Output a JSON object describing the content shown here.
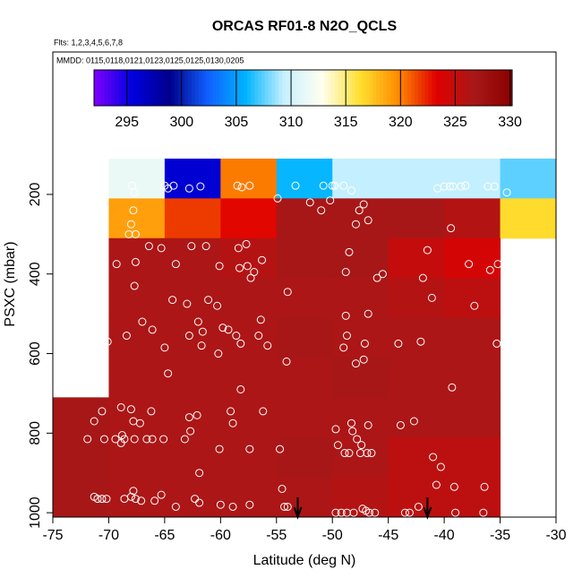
{
  "chart_data": {
    "type": "heatmap",
    "title": "ORCAS RF01-8 N2O_QCLS",
    "subtitle": "Flts: 1,2,3,4,5,6,7,8",
    "annotation": "MMDD: 0115,0118,0121,0123,0125,0125,0130,0205",
    "x_label": "Latitude (deg N)",
    "y_label": "PSXC (mbar)",
    "xlim": [
      -75,
      -30
    ],
    "xticks": [
      -75,
      -70,
      -65,
      -60,
      -55,
      -50,
      -45,
      -40,
      -35,
      -30
    ],
    "ylim": [
      -158,
      1011
    ],
    "yticks": [
      200,
      400,
      600,
      800,
      1000
    ],
    "x_edges": [
      -75,
      -70,
      -65,
      -60,
      -55,
      -50,
      -45,
      -40,
      -35,
      -30
    ],
    "y_edges": [
      110,
      210,
      310,
      410,
      510,
      610,
      710,
      810,
      910,
      1010
    ],
    "values": [
      [
        null,
        311.5,
        296,
        320.2,
        306,
        309.3,
        309.3,
        309.3,
        307.5
      ],
      [
        null,
        319,
        321.8,
        323.1,
        326.8,
        326.8,
        326.8,
        326,
        316.5
      ],
      [
        null,
        326.5,
        326.5,
        326,
        326.8,
        326.8,
        325,
        324,
        null
      ],
      [
        null,
        326.5,
        326.5,
        326.5,
        326.5,
        326.5,
        326,
        325.5,
        null
      ],
      [
        null,
        326.5,
        326.5,
        326.5,
        326.8,
        326.5,
        326.5,
        326.5,
        null
      ],
      [
        null,
        326.5,
        326.5,
        326.5,
        326.5,
        326.8,
        326.5,
        326.5,
        null
      ],
      [
        326.8,
        326.5,
        326.5,
        326.5,
        326.5,
        326.5,
        326.5,
        326.5,
        null
      ],
      [
        326.8,
        326.5,
        326.5,
        326.5,
        326.8,
        326.5,
        325.5,
        325.5,
        null
      ],
      [
        326.8,
        326.5,
        326.5,
        326.5,
        326.5,
        326,
        325.5,
        325.5,
        null
      ]
    ],
    "clim": [
      292,
      330.2
    ],
    "cticks": [
      295,
      300,
      305,
      310,
      315,
      320,
      325,
      330
    ],
    "colorscale": [
      "#7f00ff",
      "#0000e0",
      "#00008b",
      "#1060ff",
      "#00b4ff",
      "#c8f0ff",
      "#fffff0",
      "#ffe030",
      "#ff8c00",
      "#e00000",
      "#a81818",
      "#8b0000"
    ],
    "point_color": "#ffffff",
    "points_x": [
      -67.9,
      -67.7,
      -65.0,
      -64.7,
      -64.2,
      -62.8,
      -61.8,
      -58.5,
      -58.1,
      -57.4,
      -53.3,
      -50.8,
      -50.0,
      -49.8,
      -49.0,
      -48.3,
      -40.6,
      -40.0,
      -39.5,
      -39.2,
      -38.5,
      -38.1,
      -36.1,
      -35.5,
      -34.4,
      -67.8,
      -68.0,
      -67.6,
      -68.2,
      -54.9,
      -51.0,
      -47.6,
      -47.9,
      -46.8,
      -39.4,
      -52.0,
      -47.2,
      -50.2,
      -69.3,
      -67.6,
      -66.4,
      -65.3,
      -64.0,
      -62.6,
      -61.3,
      -60.1,
      -58.4,
      -57.7,
      -58.3,
      -57.6,
      -57.0,
      -56.3,
      -57.3,
      -48.5,
      -48.8,
      -46.0,
      -45.5,
      -41.9,
      -41.5,
      -37.8,
      -35.2,
      -34.6,
      -34.0,
      -35.9,
      -67.7,
      -64.3,
      -63.0,
      -61.1,
      -54.0,
      -41.1,
      -37.3,
      -62.0,
      -60.3,
      -56.4,
      -48.8,
      -46.8,
      -67.0,
      -70.1,
      -68.4,
      -66.1,
      -65.0,
      -62.8,
      -61.7,
      -61.6,
      -59.8,
      -58.6,
      -58.2,
      -55.8,
      -56.6,
      -59.3,
      -54.1,
      -60.2,
      -49.0,
      -48.7,
      -47.1,
      -44.1,
      -42.1,
      -35.3,
      -47.9,
      -47.2,
      -64.7,
      -58.2,
      -39.3,
      -71.3,
      -70.6,
      -68.9,
      -68.0,
      -67.8,
      -66.2,
      -67.2,
      -62.8,
      -62.1,
      -62.7,
      -58.9,
      -59.1,
      -56.2,
      -49.7,
      -48.2,
      -43.9,
      -42.7,
      -46.8,
      -48.3,
      -71.9,
      -70.4,
      -69.4,
      -68.6,
      -68.9,
      -68.8,
      -67.7,
      -66.6,
      -66.1,
      -65.1,
      -63.2,
      -60.1,
      -57.4,
      -54.7,
      -48.9,
      -48.5,
      -47.5,
      -46.9,
      -46.5,
      -47.8,
      -49.5,
      -47.4,
      -41.0,
      -40.3,
      -61.9,
      -71.3,
      -71.0,
      -70.6,
      -70.2,
      -68.6,
      -68.0,
      -67.8,
      -67.6,
      -67.1,
      -65.9,
      -65.3,
      -64.0,
      -62.3,
      -61.9,
      -60.0,
      -58.9,
      -57.4,
      -54.3,
      -54.0,
      -54.5,
      -49.7,
      -49.2,
      -48.7,
      -48.1,
      -47.3,
      -47.0,
      -46.7,
      -46.2,
      -43.5,
      -43.1,
      -42.3,
      -39.0,
      -39.1,
      -36.5,
      -36.4,
      -40.7
    ],
    "points_y": [
      178,
      195,
      178,
      185,
      178,
      185,
      180,
      178,
      182,
      178,
      178,
      178,
      178,
      178,
      178,
      190,
      185,
      180,
      180,
      180,
      180,
      178,
      180,
      180,
      195,
      240,
      275,
      300,
      300,
      210,
      240,
      240,
      275,
      265,
      285,
      220,
      225,
      215,
      375,
      370,
      330,
      335,
      375,
      330,
      330,
      380,
      335,
      325,
      385,
      380,
      395,
      365,
      410,
      345,
      395,
      410,
      400,
      410,
      340,
      375,
      375,
      375,
      360,
      390,
      430,
      465,
      475,
      465,
      445,
      460,
      480,
      520,
      480,
      515,
      505,
      500,
      520,
      570,
      555,
      540,
      585,
      555,
      580,
      545,
      535,
      555,
      575,
      580,
      555,
      540,
      620,
      600,
      585,
      555,
      575,
      575,
      570,
      575,
      625,
      615,
      650,
      690,
      685,
      770,
      745,
      735,
      740,
      770,
      745,
      775,
      760,
      755,
      795,
      775,
      745,
      745,
      790,
      795,
      780,
      770,
      780,
      775,
      815,
      815,
      815,
      815,
      825,
      805,
      815,
      815,
      815,
      815,
      815,
      840,
      840,
      840,
      850,
      850,
      850,
      850,
      850,
      815,
      830,
      830,
      860,
      885,
      900,
      960,
      965,
      965,
      965,
      965,
      960,
      945,
      965,
      970,
      970,
      955,
      985,
      965,
      975,
      980,
      985,
      980,
      985,
      985,
      940,
      1000,
      1000,
      1000,
      1000,
      990,
      995,
      1000,
      1000,
      1000,
      1000,
      985,
      1000,
      935,
      1000,
      935,
      930
    ],
    "arrows_x": [
      -53.1,
      -41.5
    ]
  }
}
